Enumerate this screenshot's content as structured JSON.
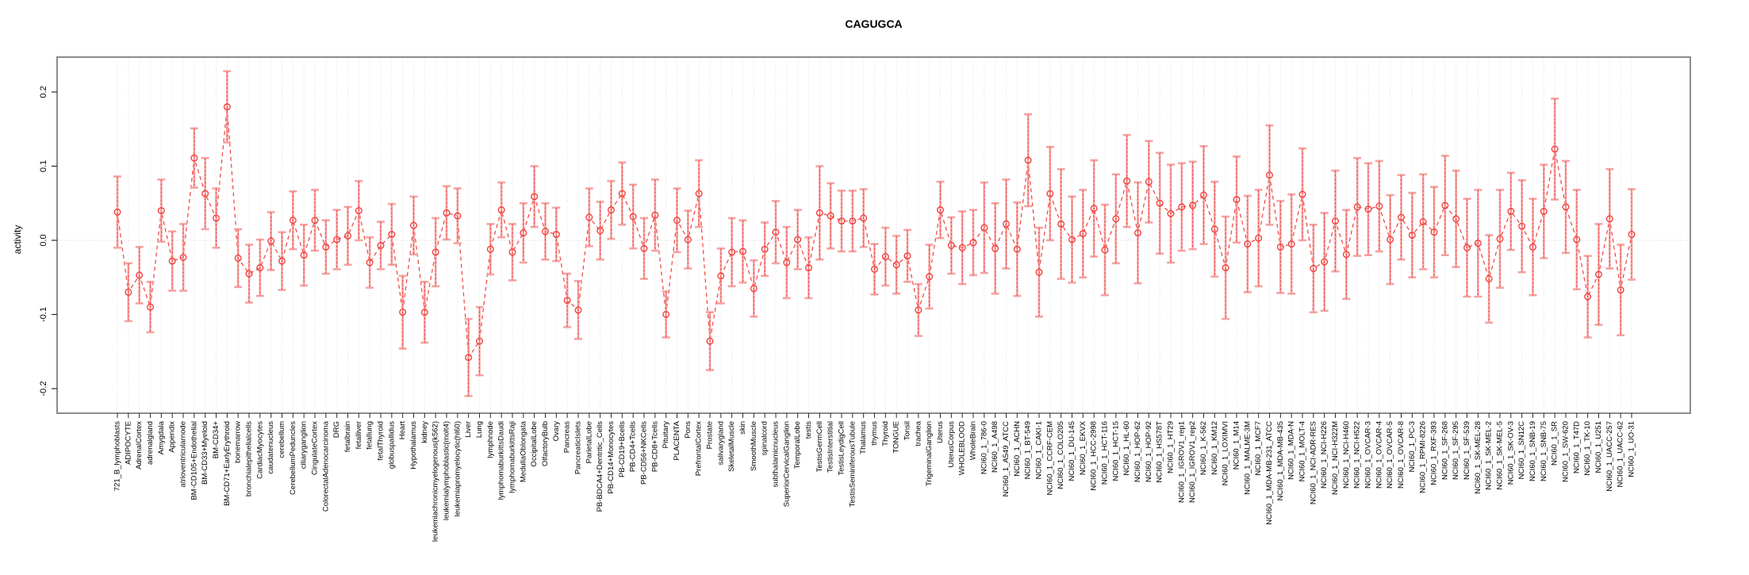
{
  "title": "CAGUGCA",
  "y_axis": {
    "label": "activity",
    "tick_labels": [
      "-0.2",
      "-0.1",
      "0.0",
      "0.1",
      "0.2"
    ],
    "tick_values": [
      -0.2,
      -0.1,
      0.0,
      0.1,
      0.2
    ]
  },
  "colors": {
    "point": "#f0413e",
    "series_line": "#f0413e",
    "error_bar": "#f5a3a1",
    "grid": "#e4e4e4",
    "zero_line": "#d9d9d9",
    "box": "#8c8c8c",
    "tick": "#2b2b2b",
    "label_text": "#000000"
  },
  "chart_data": {
    "type": "scatter",
    "title": "CAGUGCA",
    "xlabel": "",
    "ylabel": "activity",
    "ylim": [
      -0.22,
      0.23
    ],
    "grid": "vertical-dotted-per-category, dotted-zero-line",
    "legend": "none",
    "marker": "open-circle",
    "line_style": "dashed",
    "error_bars": true,
    "categories": [
      "721_B_lymphoblasts",
      "ADIPOCYTE",
      "AdrenalCortex",
      "adrenalgland",
      "Amygdala",
      "Appendix",
      "atrioventricularnode",
      "BM-CD105+Endothelial",
      "BM-CD33+Myeloid",
      "BM-CD34+",
      "BM-CD71+EarlyErythroid",
      "bonemarrow",
      "bronchialepithelialcells",
      "CardiacMyocytes",
      "caudatenucleus",
      "cerebellum",
      "CerebellumPeduncles",
      "ciliaryganglion",
      "CingulateCortex",
      "ColorectalAdenocarcinoma",
      "DRG",
      "fetalbrain",
      "fetalliver",
      "fetallung",
      "fetalThyroid",
      "globuspallidus",
      "Heart",
      "Hypothalamus",
      "kidney",
      "leukemiachronicmyelogenous(k562)",
      "leukemialymphoblastic(molt4)",
      "leukemiapromyelocytic(hl60)",
      "Liver",
      "Lung",
      "lymphnode",
      "lymphomaburkittsDaudi",
      "lymphomaburkittsRaji",
      "MedullaOblongata",
      "OccipitalLobe",
      "OlfactoryBulb",
      "Ovary",
      "Pancreas",
      "PancreaticIslets",
      "ParietalLobe",
      "PB-BDCA4+Dentritic_Cells",
      "PB-CD14+Monocytes",
      "PB-CD19+Bcells",
      "PB-CD4+Tcells",
      "PB-CD56+NKCells",
      "PB-CD8+Tcells",
      "Pituitary",
      "PLACENTA",
      "Pons",
      "PrefrontalCortex",
      "Prostate",
      "salivarygland",
      "SkeletalMuscle",
      "skin",
      "SmoothMuscle",
      "spinalcord",
      "subthalamicnucleus",
      "SuperiorCervicalGanglion",
      "TemporalLobe",
      "testis",
      "TestisGermCell",
      "TestisInterstitial",
      "TestisLeydigCell",
      "TestisSeminiferousTubule",
      "Thalamus",
      "thymus",
      "Thyroid",
      "TONGUE",
      "Tonsil",
      "trachea",
      "TrigeminalGanglion",
      "Uterus",
      "UterusCorpus",
      "WHOLEBLOOD",
      "WholeBrain",
      "NCI60_1_786-0",
      "NCI60_1_A498",
      "NCI60_1_A549_ATCC",
      "NCI60_1_ACHN",
      "NCI60_1_BT-549",
      "NCI60_1_CAKI-1",
      "NCI60_1_CCRF-CEM",
      "NCI60_1_COLO205",
      "NCI60_1_DU-145",
      "NCI60_1_EKVX",
      "NCI60_1_HCC-2998",
      "NCI60_1_HCT-116",
      "NCI60_1_HCT-15",
      "NCI60_1_HL-60",
      "NCI60_1_HOP-62",
      "NCI60_1_HOP-92",
      "NCI60_1_HS578T",
      "NCI60_1_HT29",
      "NCI60_1_IGROV1_rep1",
      "NCI60_1_IGROV1_rep2",
      "NCI60_1_K-562",
      "NCI60_1_KM12",
      "NCI60_1_LOXIMVI",
      "NCI60_1_M14",
      "NCI60_1_MALME-3M",
      "NCI60_1_MCF7",
      "NCI60_1_MDA-MB-231_ATCC",
      "NCI60_1_MDA-MB-435",
      "NCI60_1_MDA-N",
      "NCI60_1_MOLT-4",
      "NCI60_1_NCI-ADR-RES",
      "NCI60_1_NCI-H226",
      "NCI60_1_NCI-H322M",
      "NCI60_1_NCI-H460",
      "NCI60_1_NCI-H522",
      "NCI60_1_OVCAR-3",
      "NCI60_1_OVCAR-4",
      "NCI60_1_OVCAR-5",
      "NCI60_1_OVCAR-8",
      "NCI60_1_PC-3",
      "NCI60_1_RPMI-8226",
      "NCI60_1_RXF-393",
      "NCI60_1_SF-268",
      "NCI60_1_SF-295",
      "NCI60_1_SF-539",
      "NCI60_1_SK-MEL-28",
      "NCI60_1_SK-MEL-2",
      "NCI60_1_SK-MEL-5",
      "NCI60_1_SK-OV-3",
      "NCI60_1_SN12C",
      "NCI60_1_SNB-19",
      "NCI60_1_SNB-75",
      "NCI60_1_SR",
      "NCI60_1_SW-620",
      "NCI60_1_T47D",
      "NCI60_1_TK-10",
      "NCI60_1_U251",
      "NCI60_1_UACC-257",
      "NCI60_1_UACC-62",
      "NCI60_1_UO-31"
    ],
    "series": [
      {
        "name": "activity",
        "values": [
          0.038,
          -0.07,
          -0.047,
          -0.09,
          0.04,
          -0.028,
          -0.023,
          0.111,
          0.063,
          0.03,
          0.18,
          -0.024,
          -0.045,
          -0.037,
          -0.001,
          -0.028,
          0.027,
          -0.02,
          0.027,
          -0.009,
          0.001,
          0.006,
          0.04,
          -0.03,
          -0.007,
          0.008,
          -0.097,
          0.02,
          -0.097,
          -0.016,
          0.037,
          0.033,
          -0.158,
          -0.136,
          -0.012,
          0.041,
          -0.016,
          0.01,
          0.059,
          0.012,
          0.008,
          -0.081,
          -0.094,
          0.031,
          0.013,
          0.041,
          0.063,
          0.032,
          -0.011,
          0.034,
          -0.1,
          0.027,
          0.001,
          0.063,
          -0.136,
          -0.048,
          -0.016,
          -0.015,
          -0.065,
          -0.012,
          0.011,
          -0.03,
          0.001,
          -0.037,
          0.037,
          0.033,
          0.026,
          0.026,
          0.03,
          -0.039,
          -0.022,
          -0.033,
          -0.021,
          -0.094,
          -0.049,
          0.041,
          -0.007,
          -0.01,
          -0.003,
          0.017,
          -0.011,
          0.022,
          -0.012,
          0.108,
          -0.043,
          0.063,
          0.022,
          0.001,
          0.009,
          0.043,
          -0.013,
          0.029,
          0.08,
          0.01,
          0.079,
          0.05,
          0.036,
          0.045,
          0.047,
          0.061,
          0.015,
          -0.037,
          0.055,
          -0.005,
          0.003,
          0.088,
          -0.009,
          -0.005,
          0.062,
          -0.038,
          -0.029,
          0.026,
          -0.019,
          0.045,
          0.042,
          0.046,
          0.001,
          0.031,
          0.007,
          0.025,
          0.011,
          0.047,
          0.029,
          -0.01,
          -0.004,
          -0.052,
          0.002,
          0.039,
          0.019,
          -0.009,
          0.039,
          0.123,
          0.045,
          0.001,
          -0.076,
          -0.046,
          0.029,
          -0.067,
          0.008
        ],
        "errors": [
          0.048,
          0.039,
          0.038,
          0.034,
          0.042,
          0.04,
          0.045,
          0.04,
          0.048,
          0.04,
          0.048,
          0.039,
          0.039,
          0.038,
          0.039,
          0.039,
          0.039,
          0.041,
          0.041,
          0.036,
          0.04,
          0.039,
          0.04,
          0.034,
          0.032,
          0.041,
          0.049,
          0.039,
          0.041,
          0.046,
          0.036,
          0.037,
          0.052,
          0.046,
          0.034,
          0.037,
          0.038,
          0.04,
          0.041,
          0.038,
          0.036,
          0.036,
          0.039,
          0.039,
          0.039,
          0.039,
          0.042,
          0.043,
          0.041,
          0.048,
          0.031,
          0.043,
          0.039,
          0.045,
          0.039,
          0.037,
          0.046,
          0.042,
          0.038,
          0.036,
          0.042,
          0.048,
          0.04,
          0.041,
          0.063,
          0.044,
          0.041,
          0.041,
          0.039,
          0.034,
          0.039,
          0.039,
          0.035,
          0.035,
          0.043,
          0.038,
          0.038,
          0.049,
          0.044,
          0.061,
          0.061,
          0.06,
          0.063,
          0.062,
          0.06,
          0.063,
          0.074,
          0.058,
          0.059,
          0.065,
          0.061,
          0.06,
          0.062,
          0.068,
          0.055,
          0.068,
          0.066,
          0.059,
          0.059,
          0.066,
          0.064,
          0.069,
          0.058,
          0.065,
          0.065,
          0.067,
          0.062,
          0.067,
          0.062,
          0.059,
          0.066,
          0.068,
          0.06,
          0.066,
          0.062,
          0.061,
          0.06,
          0.057,
          0.057,
          0.064,
          0.061,
          0.067,
          0.065,
          0.066,
          0.072,
          0.059,
          0.066,
          0.052,
          0.062,
          0.065,
          0.063,
          0.068,
          0.062,
          0.067,
          0.055,
          0.068,
          0.067,
          0.061,
          0.061
        ]
      }
    ]
  }
}
